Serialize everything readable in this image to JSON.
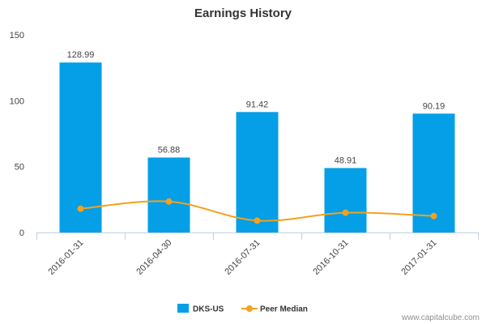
{
  "chart_data": {
    "type": "bar",
    "title": "Earnings History",
    "xlabel": "",
    "ylabel": "",
    "categories": [
      "2016-01-31",
      "2016-04-30",
      "2016-07-31",
      "2016-10-31",
      "2017-01-31"
    ],
    "ylim": [
      0,
      150
    ],
    "yticks": [
      "0",
      "50",
      "100",
      "150"
    ],
    "grid": false,
    "legend_position": "bottom",
    "series": [
      {
        "name": "DKS-US",
        "type": "bar",
        "color": "#049fe6",
        "values": [
          128.99,
          56.88,
          91.42,
          48.91,
          90.19
        ],
        "labels": [
          "128.99",
          "56.88",
          "91.42",
          "48.91",
          "90.19"
        ]
      },
      {
        "name": "Peer Median",
        "type": "line",
        "smooth": true,
        "color": "#f4a11d",
        "values": [
          18,
          23.5,
          9,
          15,
          12.5
        ]
      }
    ]
  },
  "credit": "www.capitalcube.com"
}
